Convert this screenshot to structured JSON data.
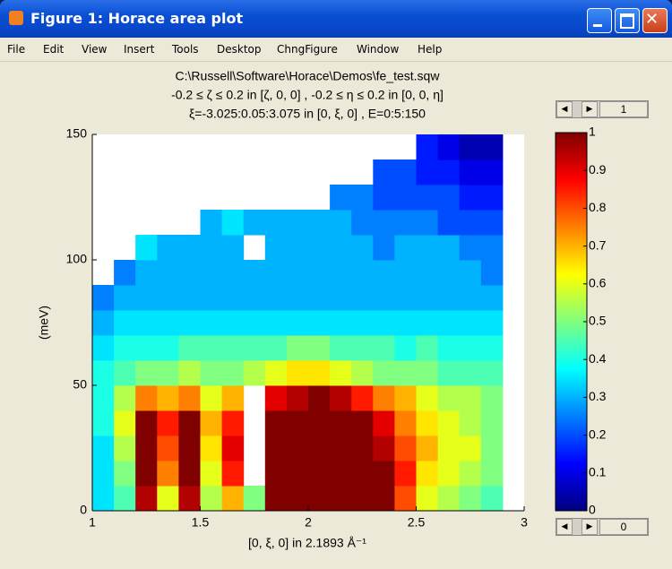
{
  "window": {
    "title": "Figure 1: Horace area plot"
  },
  "menu": {
    "items": [
      "File",
      "Edit",
      "View",
      "Insert",
      "Tools",
      "Desktop",
      "ChngFigure",
      "Window",
      "Help"
    ]
  },
  "sliders": [
    {
      "value": 1
    },
    {
      "value": 0
    }
  ],
  "chart_data": {
    "type": "heatmap",
    "title": [
      "C:\\Russell\\Software\\Horace\\Demos\\fe_test.sqw",
      "-0.2 ≤ ζ ≤ 0.2 in [ζ, 0, 0] , -0.2 ≤ η ≤ 0.2 in [0, 0, η]",
      "ξ=-3.025:0.05:3.075 in [0, ξ, 0] , E=0:5:150"
    ],
    "xlabel": "[0, ξ, 0] in 2.1893 Å⁻¹",
    "ylabel": "(meV)",
    "xbins": [
      1,
      1.1,
      1.2,
      1.3,
      1.4,
      1.5,
      1.6,
      1.7,
      1.8,
      1.9,
      2,
      2.1,
      2.2,
      2.3,
      2.4,
      2.5,
      2.6,
      2.7,
      2.8,
      2.9,
      3
    ],
    "ybins": [
      0,
      10,
      20,
      30,
      40,
      50,
      60,
      70,
      80,
      90,
      100,
      110,
      120,
      130,
      140,
      150
    ],
    "values": [
      [
        0.35,
        0.45,
        0.95,
        0.6,
        0.95,
        0.55,
        0.7,
        0.5,
        1,
        1,
        1,
        1,
        1,
        1,
        0.8,
        0.6,
        0.55,
        0.5,
        0.45,
        null
      ],
      [
        0.35,
        0.5,
        1,
        0.75,
        1,
        0.6,
        0.85,
        null,
        1,
        1,
        1,
        1,
        1,
        1,
        0.85,
        0.65,
        0.6,
        0.55,
        0.5,
        null
      ],
      [
        0.35,
        0.55,
        1,
        0.8,
        1,
        0.65,
        0.9,
        null,
        1,
        1,
        1,
        1,
        1,
        0.95,
        0.8,
        0.7,
        0.6,
        0.6,
        0.5,
        null
      ],
      [
        0.4,
        0.6,
        1,
        0.85,
        1,
        0.7,
        0.85,
        null,
        1,
        1,
        1,
        1,
        1,
        0.9,
        0.75,
        0.65,
        0.6,
        0.55,
        0.5,
        null
      ],
      [
        0.4,
        0.55,
        0.75,
        0.7,
        0.75,
        0.6,
        0.7,
        null,
        0.9,
        0.95,
        1,
        0.95,
        0.85,
        0.75,
        0.7,
        0.6,
        0.55,
        0.55,
        0.5,
        null
      ],
      [
        0.4,
        0.45,
        0.5,
        0.5,
        0.55,
        0.5,
        0.5,
        0.55,
        0.6,
        0.65,
        0.65,
        0.6,
        0.55,
        0.5,
        0.5,
        0.5,
        0.45,
        0.45,
        0.45,
        null
      ],
      [
        0.35,
        0.4,
        0.4,
        0.4,
        0.45,
        0.45,
        0.45,
        0.45,
        0.45,
        0.5,
        0.5,
        0.45,
        0.45,
        0.45,
        0.4,
        0.45,
        0.4,
        0.4,
        0.4,
        null
      ],
      [
        0.3,
        0.35,
        0.35,
        0.35,
        0.35,
        0.35,
        0.35,
        0.35,
        0.35,
        0.35,
        0.35,
        0.35,
        0.35,
        0.35,
        0.35,
        0.35,
        0.35,
        0.35,
        0.35,
        null
      ],
      [
        0.25,
        0.3,
        0.3,
        0.3,
        0.3,
        0.3,
        0.3,
        0.3,
        0.3,
        0.3,
        0.3,
        0.3,
        0.3,
        0.3,
        0.3,
        0.3,
        0.3,
        0.3,
        0.3,
        null
      ],
      [
        null,
        0.25,
        0.3,
        0.3,
        0.3,
        0.3,
        0.3,
        0.3,
        0.3,
        0.3,
        0.3,
        0.3,
        0.3,
        0.3,
        0.3,
        0.3,
        0.3,
        0.3,
        0.25,
        null
      ],
      [
        null,
        null,
        0.35,
        0.3,
        0.3,
        0.3,
        0.3,
        null,
        0.3,
        0.3,
        0.3,
        0.3,
        0.3,
        0.25,
        0.3,
        0.3,
        0.3,
        0.25,
        0.25,
        null
      ],
      [
        null,
        null,
        null,
        null,
        null,
        0.3,
        0.35,
        0.3,
        0.3,
        0.3,
        0.3,
        0.3,
        0.25,
        0.25,
        0.25,
        0.25,
        0.2,
        0.2,
        0.2,
        null
      ],
      [
        null,
        null,
        null,
        null,
        null,
        null,
        null,
        null,
        null,
        null,
        null,
        0.25,
        0.25,
        0.2,
        0.2,
        0.2,
        0.2,
        0.15,
        0.15,
        null
      ],
      [
        null,
        null,
        null,
        null,
        null,
        null,
        null,
        null,
        null,
        null,
        null,
        null,
        null,
        0.2,
        0.2,
        0.15,
        0.15,
        0.1,
        0.1,
        null
      ],
      [
        null,
        null,
        null,
        null,
        null,
        null,
        null,
        null,
        null,
        null,
        null,
        null,
        null,
        null,
        null,
        0.15,
        0.1,
        0.05,
        0.05,
        null
      ]
    ],
    "xlim": [
      1,
      3
    ],
    "xticks": [
      1,
      1.5,
      2,
      2.5,
      3
    ],
    "ylim": [
      0,
      150
    ],
    "yticks": [
      0,
      50,
      100,
      150
    ],
    "colormap": "jet",
    "clim": [
      0,
      1
    ],
    "cticks": [
      0,
      0.1,
      0.2,
      0.3,
      0.4,
      0.5,
      0.6,
      0.7,
      0.8,
      0.9,
      1
    ]
  }
}
